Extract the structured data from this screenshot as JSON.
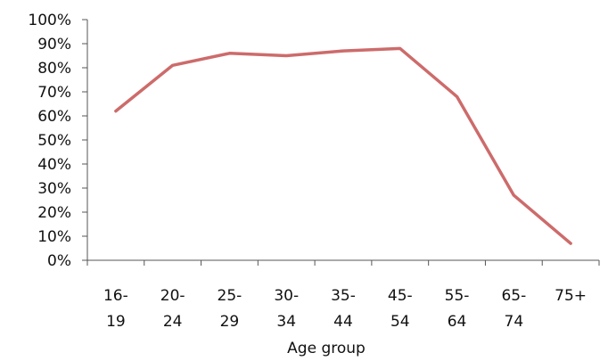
{
  "chart_data": {
    "type": "line",
    "categories": [
      [
        "16-",
        "19"
      ],
      [
        "20-",
        "24"
      ],
      [
        "25-",
        "29"
      ],
      [
        "30-",
        "34"
      ],
      [
        "35-",
        "44"
      ],
      [
        "45-",
        "54"
      ],
      [
        "55-",
        "64"
      ],
      [
        "65-",
        "74"
      ],
      [
        "75+",
        ""
      ]
    ],
    "series": [
      {
        "values": [
          62,
          81,
          86,
          85,
          87,
          88,
          68,
          27,
          7
        ],
        "color": "#cd6b6b"
      }
    ],
    "ylim": [
      0,
      100
    ],
    "y_tick_values": [
      0,
      10,
      20,
      30,
      40,
      50,
      60,
      70,
      80,
      90,
      100
    ],
    "y_tick_labels": [
      "0%",
      "10%",
      "20%",
      "30%",
      "40%",
      "50%",
      "60%",
      "70%",
      "80%",
      "90%",
      "100%"
    ],
    "xlabel": "Age group",
    "ylabel": "",
    "title": "",
    "grid": false,
    "legend": "none"
  }
}
